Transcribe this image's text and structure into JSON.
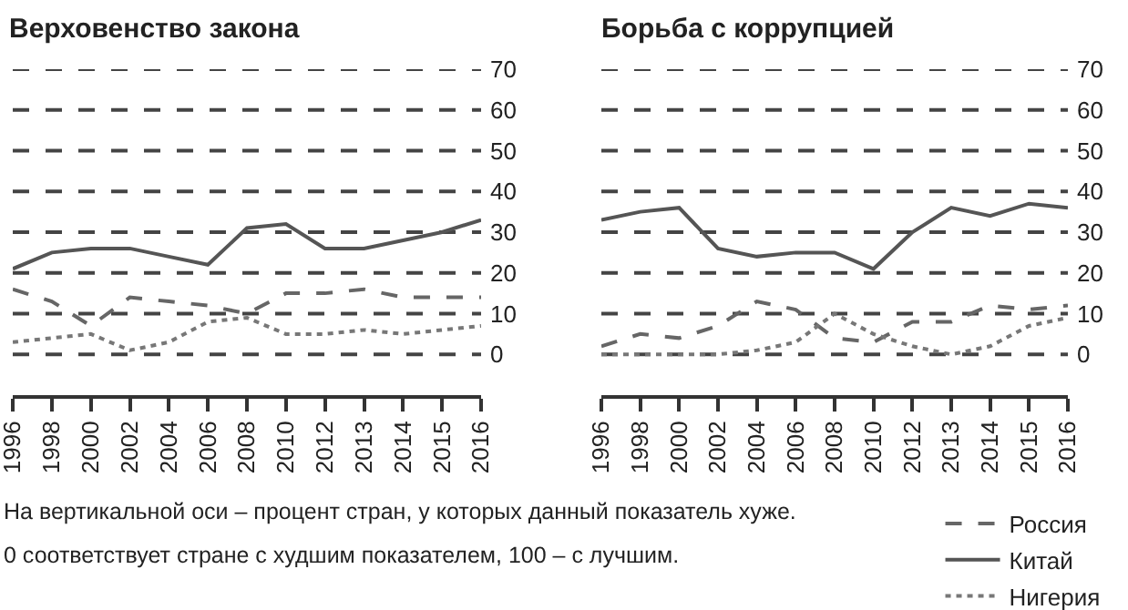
{
  "chart_data": [
    {
      "type": "line",
      "title": "Верховенство закона",
      "categories": [
        "1996",
        "1998",
        "2000",
        "2002",
        "2004",
        "2006",
        "2008",
        "2010",
        "2012",
        "2013",
        "2014",
        "2015",
        "2016"
      ],
      "series": [
        {
          "color": "#666666",
          "line_style": "dashed",
          "values": [
            16,
            13,
            7,
            14,
            13,
            12,
            10,
            15,
            15,
            16,
            14,
            14,
            14
          ]
        },
        {
          "color": "#555555",
          "line_style": "solid",
          "values": [
            21,
            25,
            26,
            26,
            24,
            22,
            31,
            32,
            26,
            26,
            28,
            30,
            33
          ]
        },
        {
          "color": "#777777",
          "line_style": "dotted",
          "values": [
            3,
            4,
            5,
            1,
            3,
            8,
            9,
            5,
            5,
            6,
            5,
            6,
            7
          ]
        }
      ],
      "ylim": [
        -10,
        70
      ],
      "yticks": [
        0,
        10,
        20,
        30,
        40,
        50,
        60,
        70
      ],
      "grid": "y",
      "annotations": [
        "На вертикальной оси – процент стран, у которых данный показатель хуже.",
        "0 соответствует стране с худшим показателем, 100 – с лучшим."
      ]
    },
    {
      "type": "line",
      "title": "Борьба с коррупцией",
      "categories": [
        "1996",
        "1998",
        "2000",
        "2002",
        "2004",
        "2006",
        "2008",
        "2010",
        "2012",
        "2013",
        "2014",
        "2015",
        "2016"
      ],
      "series": [
        {
          "name": "Россия",
          "color": "#666666",
          "line_style": "dashed",
          "values": [
            2,
            5,
            4,
            7,
            13,
            11,
            4,
            3,
            8,
            8,
            12,
            11,
            12
          ]
        },
        {
          "name": "Китай",
          "color": "#555555",
          "line_style": "solid",
          "values": [
            33,
            35,
            36,
            26,
            24,
            25,
            25,
            21,
            30,
            36,
            34,
            37,
            36
          ]
        },
        {
          "name": "Нигерия",
          "color": "#777777",
          "line_style": "dotted",
          "values": [
            0,
            0,
            0,
            0,
            1,
            3,
            10,
            5,
            2,
            0,
            2,
            7,
            9
          ]
        }
      ],
      "ylim": [
        -10,
        70
      ],
      "yticks": [
        0,
        10,
        20,
        30,
        40,
        50,
        60,
        70
      ],
      "grid": "y",
      "legend": "bottom right"
    }
  ]
}
